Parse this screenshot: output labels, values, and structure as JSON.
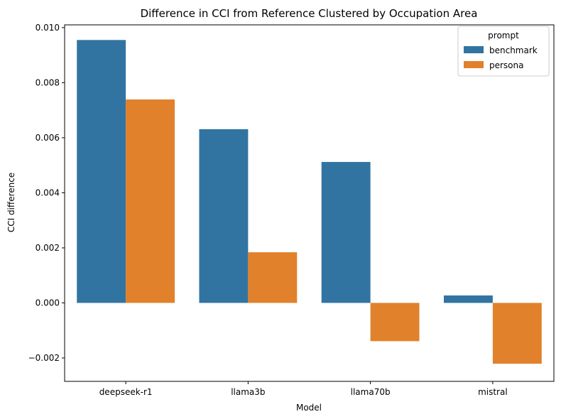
{
  "chart_data": {
    "type": "bar",
    "title": "Difference in CCI from Reference Clustered by Occupation Area",
    "xlabel": "Model",
    "ylabel": "CCI difference",
    "categories": [
      "deepseek-r1",
      "llama3b",
      "llama70b",
      "mistral"
    ],
    "series": [
      {
        "name": "benchmark",
        "color": "#3274a1",
        "values": [
          0.00955,
          0.00631,
          0.00512,
          0.00027
        ]
      },
      {
        "name": "persona",
        "color": "#e1812c",
        "values": [
          0.00739,
          0.00184,
          -0.00139,
          -0.00221
        ]
      }
    ],
    "ylim": [
      -0.00285,
      0.0101
    ],
    "yticks": [
      -0.002,
      0.0,
      0.002,
      0.004,
      0.006,
      0.008,
      0.01
    ],
    "ytick_labels": [
      "−0.002",
      "0.000",
      "0.002",
      "0.004",
      "0.006",
      "0.008",
      "0.010"
    ],
    "legend": {
      "title": "prompt",
      "position": "top-right"
    },
    "grid": false
  }
}
